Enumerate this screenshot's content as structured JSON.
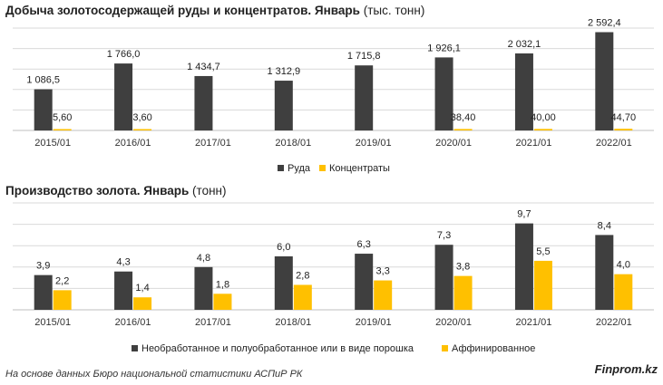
{
  "footer": {
    "source": "На основе данных Бюро национальной статистики АСПиР РК",
    "brand": "Finprom.kz"
  },
  "colors": {
    "series_dark": "#3f3f3f",
    "series_yellow": "#ffc000",
    "grid": "#d9d9d9"
  },
  "chart_data": [
    {
      "type": "bar",
      "title": "Добыча золотосодержащей руды и концентратов. Январь",
      "unit": "(тыс. тонн)",
      "categories": [
        "2015/01",
        "2016/01",
        "2017/01",
        "2018/01",
        "2019/01",
        "2020/01",
        "2021/01",
        "2022/01"
      ],
      "series": [
        {
          "name": "Руда",
          "values": [
            1086.5,
            1766.0,
            1434.7,
            1312.9,
            1715.8,
            1926.1,
            2032.1,
            2592.4
          ],
          "labels": [
            "1 086,5",
            "1 766,0",
            "1 434,7",
            "1 312,9",
            "1 715,8",
            "1 926,1",
            "2 032,1",
            "2 592,4"
          ]
        },
        {
          "name": "Концентраты",
          "values": [
            5.6,
            3.6,
            null,
            null,
            null,
            38.4,
            40.0,
            44.7
          ],
          "labels": [
            "5,60",
            "3,60",
            "",
            "",
            "",
            "38,40",
            "40,00",
            "44,70"
          ]
        }
      ],
      "ylim": [
        0,
        2700
      ],
      "grid": true,
      "legend_position": "bottom"
    },
    {
      "type": "bar",
      "title": "Производство золота. Январь",
      "unit": "(тонн)",
      "categories": [
        "2015/01",
        "2016/01",
        "2017/01",
        "2018/01",
        "2019/01",
        "2020/01",
        "2021/01",
        "2022/01"
      ],
      "series": [
        {
          "name": "Необработанное и полуобработанное или в виде порошка",
          "values": [
            3.9,
            4.3,
            4.8,
            6.0,
            6.3,
            7.3,
            9.7,
            8.4
          ],
          "labels": [
            "3,9",
            "4,3",
            "4,8",
            "6,0",
            "6,3",
            "7,3",
            "9,7",
            "8,4"
          ]
        },
        {
          "name": "Аффинированное",
          "values": [
            2.2,
            1.4,
            1.8,
            2.8,
            3.3,
            3.8,
            5.5,
            4.0
          ],
          "labels": [
            "2,2",
            "1,4",
            "1,8",
            "2,8",
            "3,3",
            "3,8",
            "5,5",
            "4,0"
          ]
        }
      ],
      "ylim": [
        0,
        12
      ],
      "grid": true,
      "legend_position": "bottom"
    }
  ]
}
